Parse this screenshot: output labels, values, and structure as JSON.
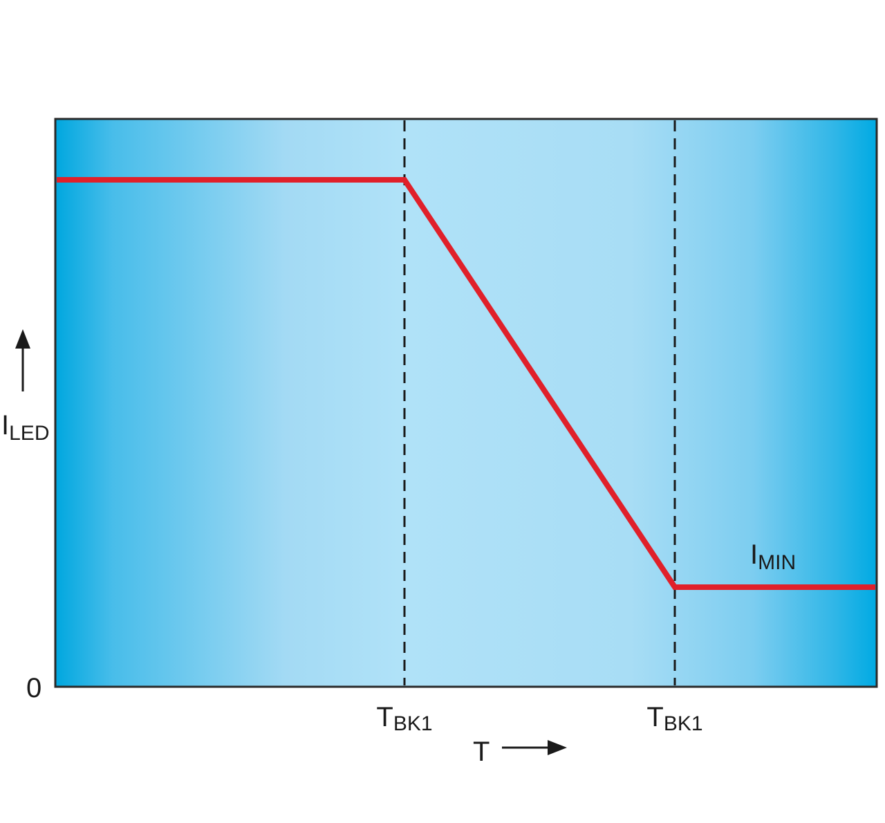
{
  "y_axis": {
    "label": {
      "main": "I",
      "sub": "LED"
    },
    "origin": "0"
  },
  "breakpoints": [
    {
      "main": "T",
      "sub": "BK1"
    },
    {
      "main": "T",
      "sub": "BK1"
    }
  ],
  "x_axis": {
    "label": "T"
  },
  "annotation": {
    "main": "I",
    "sub": "MIN"
  }
}
